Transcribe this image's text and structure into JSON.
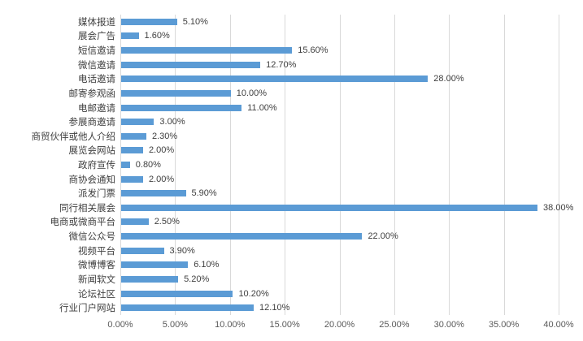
{
  "chart_data": {
    "type": "bar",
    "orientation": "horizontal",
    "title": "",
    "xlabel": "",
    "ylabel": "",
    "xlim": [
      0,
      40
    ],
    "grid": true,
    "legend": false,
    "categories": [
      "媒体报道",
      "展会广告",
      "短信邀请",
      "微信邀请",
      "电话邀请",
      "邮寄参观函",
      "电邮邀请",
      "参展商邀请",
      "商贸伙伴或他人介绍",
      "展览会网站",
      "政府宣传",
      "商协会通知",
      "派发门票",
      "同行相关展会",
      "电商或微商平台",
      "微信公众号",
      "视频平台",
      "微博博客",
      "新闻软文",
      "论坛社区",
      "行业门户网站"
    ],
    "values": [
      5.1,
      1.6,
      15.6,
      12.7,
      28.0,
      10.0,
      11.0,
      3.0,
      2.3,
      2.0,
      0.8,
      2.0,
      5.9,
      38.0,
      2.5,
      22.0,
      3.9,
      6.1,
      5.2,
      10.2,
      12.1
    ],
    "data_labels": [
      "5.10%",
      "1.60%",
      "15.60%",
      "12.70%",
      "28.00%",
      "10.00%",
      "11.00%",
      "3.00%",
      "2.30%",
      "2.00%",
      "0.80%",
      "2.00%",
      "5.90%",
      "38.00%",
      "2.50%",
      "22.00%",
      "3.90%",
      "6.10%",
      "5.20%",
      "10.20%",
      "12.10%"
    ],
    "x_ticks": [
      "0.00%",
      "5.00%",
      "10.00%",
      "15.00%",
      "20.00%",
      "25.00%",
      "30.00%",
      "35.00%",
      "40.00%"
    ],
    "colors": {
      "bar": "#5B9BD5",
      "gridline": "#D9D9D9",
      "category_label": "#404040",
      "value_label": "#404040",
      "axis_tick": "#595959",
      "background": "#FFFFFF"
    }
  }
}
